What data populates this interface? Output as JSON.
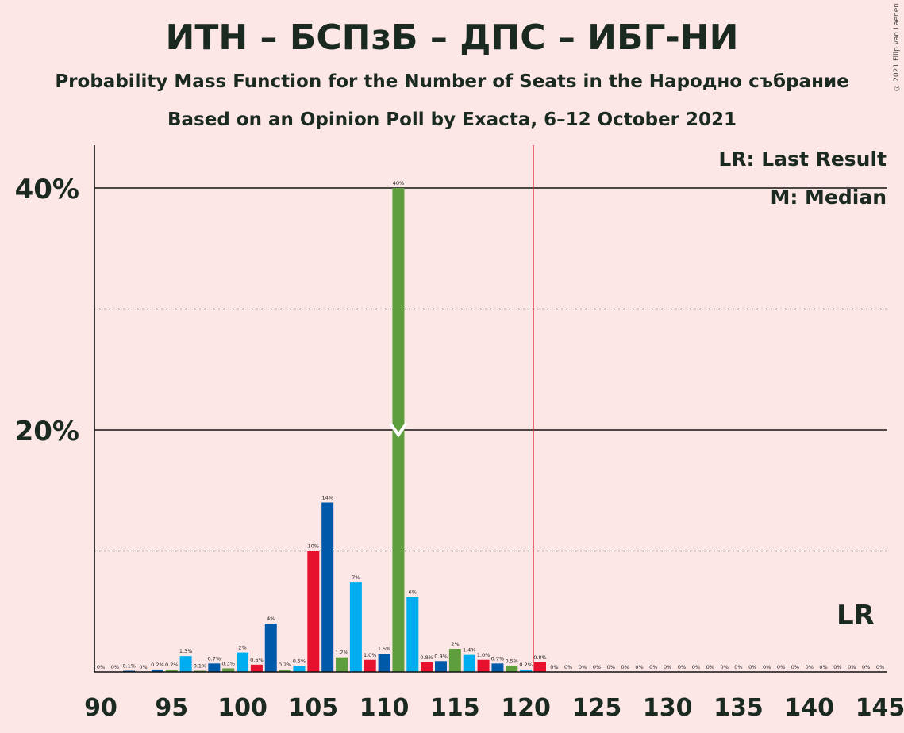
{
  "title": "ИТН – БСПзБ – ДПС – ИБГ-НИ",
  "subtitle": "Probability Mass Function for the Number of Seats in the Народно събрание",
  "subtitle2": "Based on an Opinion Poll by Exacta, 6–12 October 2021",
  "copyright": "© 2021 Filip van Laenen",
  "legend": {
    "last_result": "LR: Last Result",
    "median": "M: Median",
    "lr_mark": "LR"
  },
  "colors": {
    "background": "#fde6e6",
    "red": "#e8112d",
    "blue": "#005aa9",
    "cyan": "#00aeef",
    "green": "#5e9e3c",
    "lr_line": "#e8112d"
  },
  "chart_data": {
    "type": "bar",
    "xlim": [
      90,
      145
    ],
    "ylim": [
      0,
      44
    ],
    "x_ticks": [
      90,
      95,
      100,
      105,
      110,
      115,
      120,
      125,
      130,
      135,
      140,
      145
    ],
    "y_ticks": [
      {
        "value": 20,
        "label": "20%"
      },
      {
        "value": 40,
        "label": "40%"
      }
    ],
    "y_minor_ticks": [
      10,
      30
    ],
    "last_result": 121,
    "median": 111,
    "bars": [
      {
        "x": 90,
        "value": 0,
        "label": "0%",
        "color": "green"
      },
      {
        "x": 91,
        "value": 0,
        "label": "0%",
        "color": "red"
      },
      {
        "x": 92,
        "value": 0.1,
        "label": "0.1%",
        "color": "blue"
      },
      {
        "x": 93,
        "value": 0,
        "label": "0%",
        "color": "cyan"
      },
      {
        "x": 94,
        "value": 0.2,
        "label": "0.2%",
        "color": "blue"
      },
      {
        "x": 95,
        "value": 0.2,
        "label": "0.2%",
        "color": "green"
      },
      {
        "x": 96,
        "value": 1.3,
        "label": "1.3%",
        "color": "cyan"
      },
      {
        "x": 97,
        "value": 0.1,
        "label": "0.1%",
        "color": "green"
      },
      {
        "x": 98,
        "value": 0.7,
        "label": "0.7%",
        "color": "blue"
      },
      {
        "x": 99,
        "value": 0.3,
        "label": "0.3%",
        "color": "green"
      },
      {
        "x": 100,
        "value": 1.6,
        "label": "2%",
        "color": "cyan"
      },
      {
        "x": 101,
        "value": 0.6,
        "label": "0.6%",
        "color": "red"
      },
      {
        "x": 102,
        "value": 4,
        "label": "4%",
        "color": "blue"
      },
      {
        "x": 103,
        "value": 0.2,
        "label": "0.2%",
        "color": "green"
      },
      {
        "x": 104,
        "value": 0.5,
        "label": "0.5%",
        "color": "cyan"
      },
      {
        "x": 105,
        "value": 10,
        "label": "10%",
        "color": "red"
      },
      {
        "x": 106,
        "value": 14,
        "label": "14%",
        "color": "blue"
      },
      {
        "x": 107,
        "value": 1.2,
        "label": "1.2%",
        "color": "green"
      },
      {
        "x": 108,
        "value": 7.4,
        "label": "7%",
        "color": "cyan"
      },
      {
        "x": 109,
        "value": 1.0,
        "label": "1.0%",
        "color": "red"
      },
      {
        "x": 110,
        "value": 1.5,
        "label": "1.5%",
        "color": "blue"
      },
      {
        "x": 111,
        "value": 40,
        "label": "40%",
        "color": "green"
      },
      {
        "x": 112,
        "value": 6.2,
        "label": "6%",
        "color": "cyan"
      },
      {
        "x": 113,
        "value": 0.8,
        "label": "0.8%",
        "color": "red"
      },
      {
        "x": 114,
        "value": 0.9,
        "label": "0.9%",
        "color": "blue"
      },
      {
        "x": 115,
        "value": 1.9,
        "label": "2%",
        "color": "green"
      },
      {
        "x": 116,
        "value": 1.4,
        "label": "1.4%",
        "color": "cyan"
      },
      {
        "x": 117,
        "value": 1.0,
        "label": "1.0%",
        "color": "red"
      },
      {
        "x": 118,
        "value": 0.7,
        "label": "0.7%",
        "color": "blue"
      },
      {
        "x": 119,
        "value": 0.5,
        "label": "0.5%",
        "color": "green"
      },
      {
        "x": 120,
        "value": 0.2,
        "label": "0.2%",
        "color": "cyan"
      },
      {
        "x": 121,
        "value": 0.8,
        "label": "0.8%",
        "color": "red"
      },
      {
        "x": 122,
        "value": 0,
        "label": "0%",
        "color": "blue"
      },
      {
        "x": 123,
        "value": 0,
        "label": "0%",
        "color": "green"
      },
      {
        "x": 124,
        "value": 0,
        "label": "0%",
        "color": "cyan"
      },
      {
        "x": 125,
        "value": 0,
        "label": "0%",
        "color": "red"
      },
      {
        "x": 126,
        "value": 0,
        "label": "0%",
        "color": "blue"
      },
      {
        "x": 127,
        "value": 0,
        "label": "0%",
        "color": "green"
      },
      {
        "x": 128,
        "value": 0,
        "label": "0%",
        "color": "cyan"
      },
      {
        "x": 129,
        "value": 0,
        "label": "0%",
        "color": "red"
      },
      {
        "x": 130,
        "value": 0,
        "label": "0%",
        "color": "blue"
      },
      {
        "x": 131,
        "value": 0,
        "label": "0%",
        "color": "green"
      },
      {
        "x": 132,
        "value": 0,
        "label": "0%",
        "color": "cyan"
      },
      {
        "x": 133,
        "value": 0,
        "label": "0%",
        "color": "red"
      },
      {
        "x": 134,
        "value": 0,
        "label": "0%",
        "color": "blue"
      },
      {
        "x": 135,
        "value": 0,
        "label": "0%",
        "color": "green"
      },
      {
        "x": 136,
        "value": 0,
        "label": "0%",
        "color": "cyan"
      },
      {
        "x": 137,
        "value": 0,
        "label": "0%",
        "color": "red"
      },
      {
        "x": 138,
        "value": 0,
        "label": "0%",
        "color": "blue"
      },
      {
        "x": 139,
        "value": 0,
        "label": "0%",
        "color": "green"
      },
      {
        "x": 140,
        "value": 0,
        "label": "0%",
        "color": "cyan"
      },
      {
        "x": 141,
        "value": 0,
        "label": "0%",
        "color": "red"
      },
      {
        "x": 142,
        "value": 0,
        "label": "0%",
        "color": "blue"
      },
      {
        "x": 143,
        "value": 0,
        "label": "0%",
        "color": "green"
      },
      {
        "x": 144,
        "value": 0,
        "label": "0%",
        "color": "cyan"
      },
      {
        "x": 145,
        "value": 0,
        "label": "0%",
        "color": "red"
      }
    ]
  }
}
